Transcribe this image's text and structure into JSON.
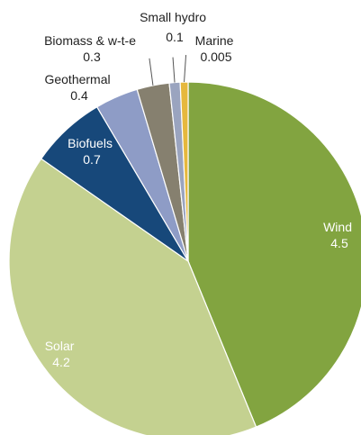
{
  "chart_data": {
    "type": "pie",
    "title": "",
    "start_angle_deg": 0,
    "direction": "clockwise",
    "slices": [
      {
        "label": "Wind",
        "value": 4.5,
        "value_text": "4.5",
        "color": "#82a440",
        "label_color": "#ffffff"
      },
      {
        "label": "Solar",
        "value": 4.2,
        "value_text": "4.2",
        "color": "#c4d190",
        "label_color": "#ffffff"
      },
      {
        "label": "Biofuels",
        "value": 0.7,
        "value_text": "0.7",
        "color": "#17487a",
        "label_color": "#ffffff"
      },
      {
        "label": "Geothermal",
        "value": 0.4,
        "value_text": "0.4",
        "color": "#8e9cc6",
        "label_color": "#222222"
      },
      {
        "label": "Biomass & w-t-e",
        "value": 0.3,
        "value_text": "0.3",
        "color": "#86806f",
        "label_color": "#222222"
      },
      {
        "label": "Small hydro",
        "value": 0.1,
        "value_text": "0.1",
        "color": "#9aa4bf",
        "label_color": "#222222"
      },
      {
        "label": "Marine",
        "value": 0.005,
        "value_text": "0.005",
        "color": "#e6b83d",
        "label_color": "#222222"
      }
    ]
  }
}
